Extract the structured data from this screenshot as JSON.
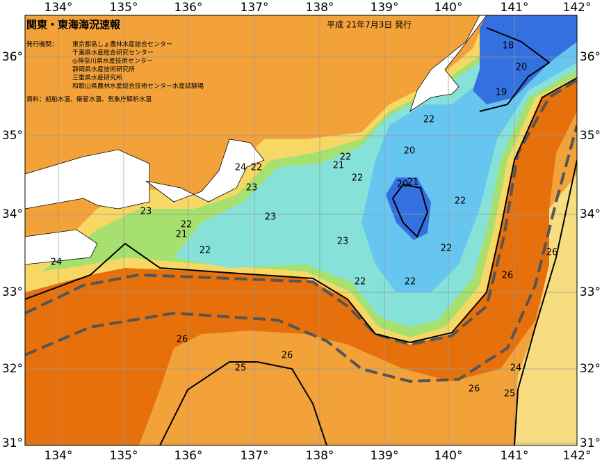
{
  "header": {
    "title": "関東・東海海況速報",
    "issued": "平成 21年7月3日 発行"
  },
  "issuers": {
    "label": "発行機関：",
    "names": [
      "東京都島しょ農林水産総合センター",
      "千葉県水産総合研究センター",
      "◎神奈川県水産技術センター",
      "静岡県水産技術研究所",
      "三重県水産研究所",
      "和歌山県農林水産総合技術センター水産試験場"
    ]
  },
  "source": "資料：船舶水温、衛星水温、気象庁解析水温",
  "longitude_labels": [
    "134°",
    "135°",
    "136°",
    "137°",
    "138°",
    "139°",
    "140°",
    "141°",
    "142°"
  ],
  "latitude_labels": [
    "36°",
    "35°",
    "34°",
    "33°",
    "32°",
    "31°"
  ],
  "contour_labels": [
    18,
    20,
    19,
    22,
    20,
    22,
    21,
    22,
    24,
    22,
    23,
    20,
    21,
    22,
    23,
    23,
    22,
    21,
    23,
    22,
    22,
    26,
    24,
    26,
    22,
    22,
    26,
    26,
    25,
    24,
    26,
    25
  ]
}
